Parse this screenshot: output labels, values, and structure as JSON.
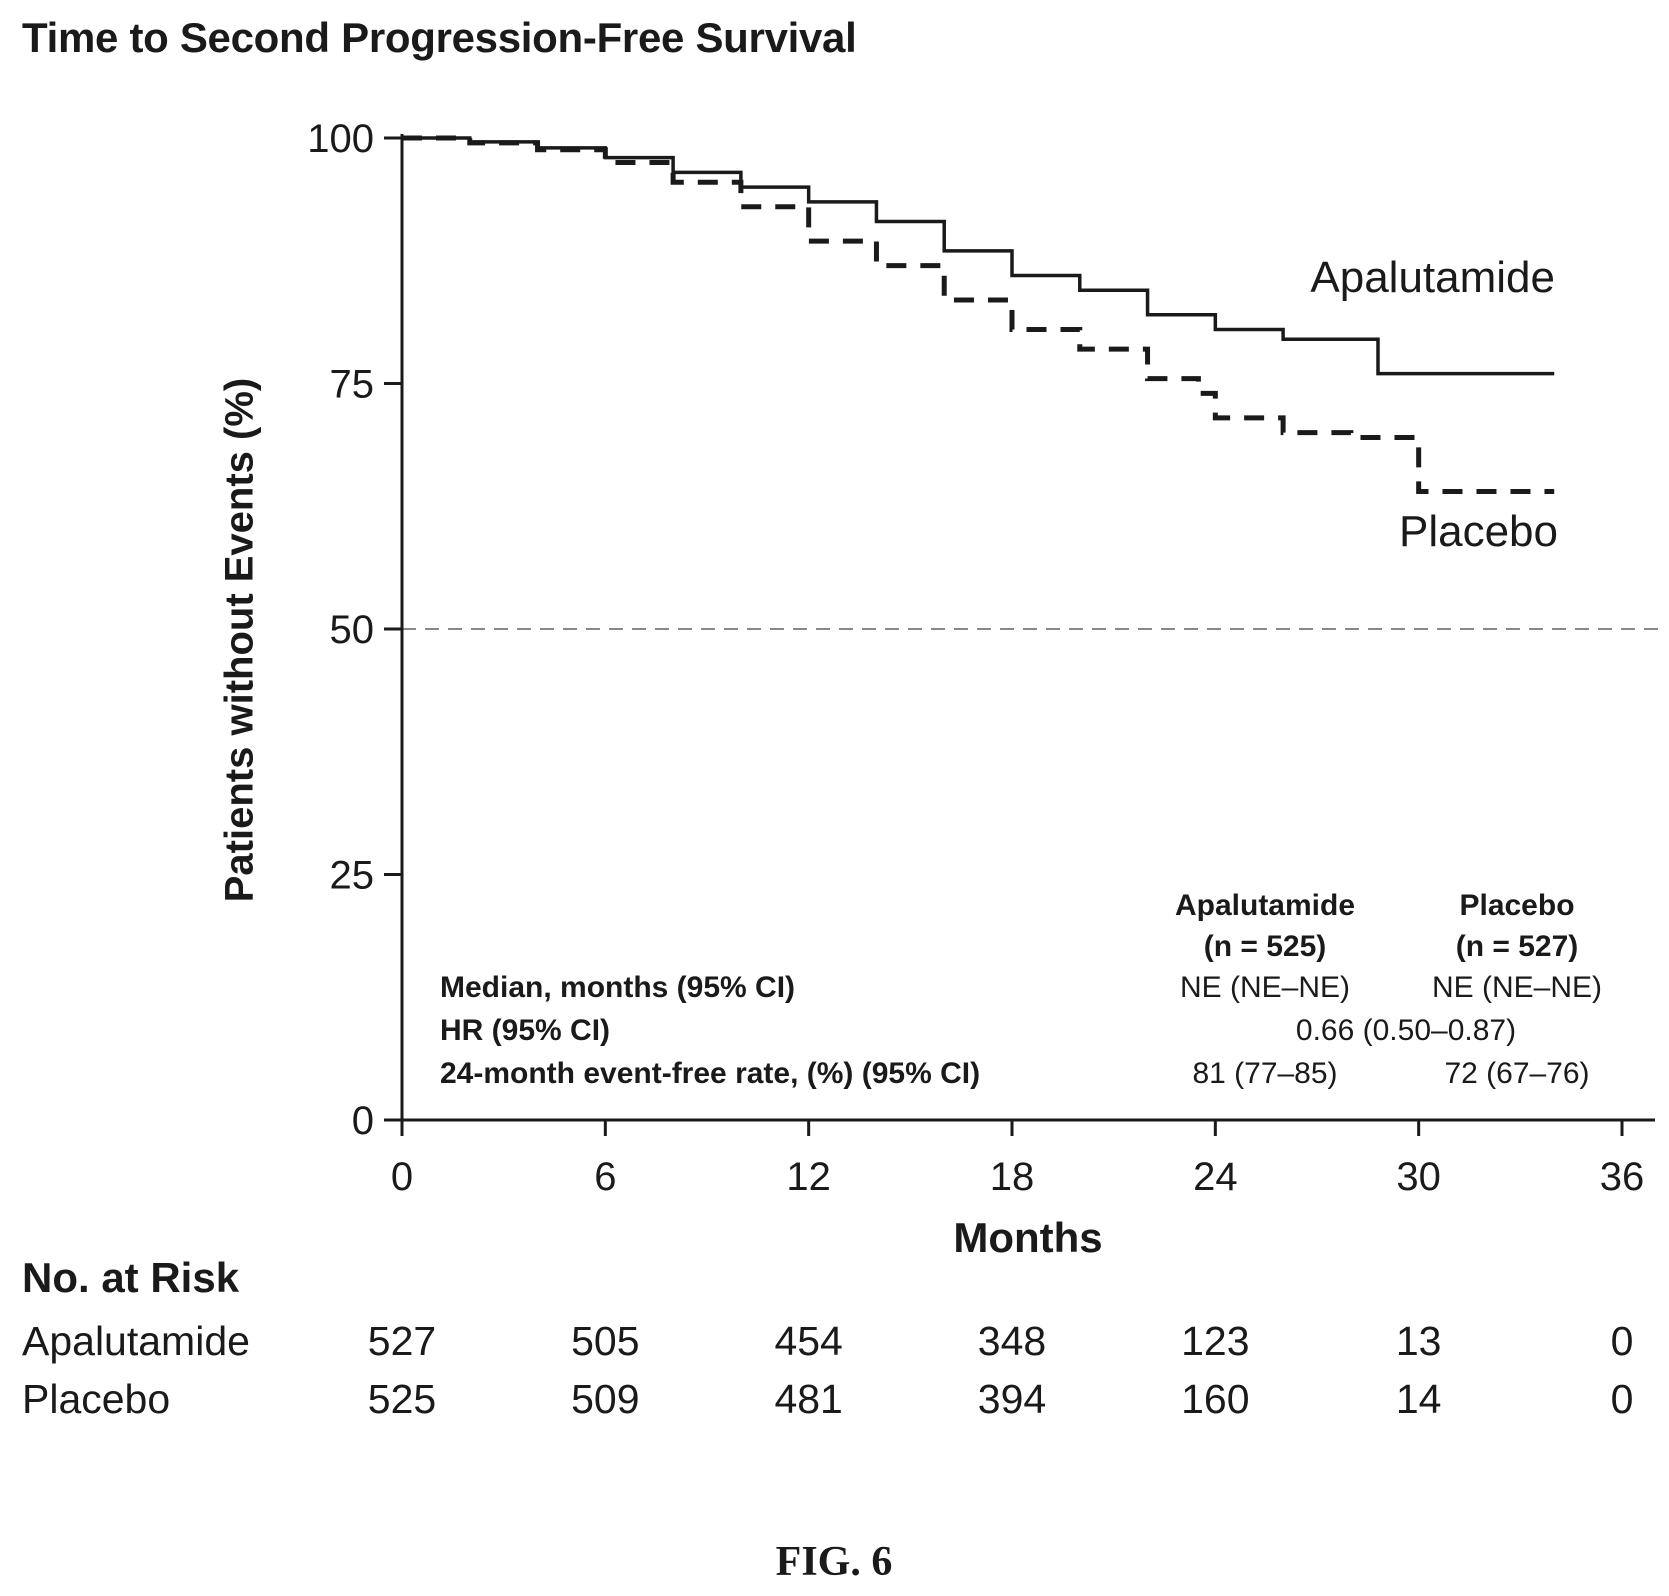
{
  "chart_data": {
    "type": "line",
    "title": "Time to Second Progression-Free Survival",
    "xlabel": "Months",
    "ylabel": "Patients without Events (%)",
    "xlim": [
      0,
      36
    ],
    "ylim": [
      0,
      100
    ],
    "x_ticks": [
      "0",
      "6",
      "12",
      "18",
      "24",
      "30",
      "36"
    ],
    "y_ticks": [
      "0",
      "25",
      "50",
      "75",
      "100"
    ],
    "reference_line": {
      "y": 50,
      "style": "dashed"
    },
    "series": [
      {
        "name": "Apalutamide",
        "style": "solid",
        "points": [
          [
            0,
            100
          ],
          [
            2,
            99.6
          ],
          [
            4,
            99
          ],
          [
            6,
            98
          ],
          [
            8,
            96.5
          ],
          [
            10,
            95
          ],
          [
            12,
            93.5
          ],
          [
            14,
            91.5
          ],
          [
            16,
            88.5
          ],
          [
            18,
            86
          ],
          [
            20,
            84.5
          ],
          [
            22,
            82
          ],
          [
            24,
            80.5
          ],
          [
            26,
            79.5
          ],
          [
            28.8,
            79
          ],
          [
            28.8,
            76
          ],
          [
            34,
            76
          ]
        ]
      },
      {
        "name": "Placebo",
        "style": "dashed",
        "points": [
          [
            0,
            100
          ],
          [
            2,
            99.5
          ],
          [
            4,
            98.8
          ],
          [
            6,
            97.5
          ],
          [
            8,
            95.5
          ],
          [
            10,
            93
          ],
          [
            12,
            89.5
          ],
          [
            14,
            87
          ],
          [
            16,
            83.5
          ],
          [
            18,
            80.5
          ],
          [
            20,
            78.5
          ],
          [
            22,
            75.5
          ],
          [
            23.5,
            74
          ],
          [
            24,
            71.5
          ],
          [
            26,
            70
          ],
          [
            28,
            69.5
          ],
          [
            30,
            69
          ],
          [
            30,
            64
          ],
          [
            34,
            64
          ]
        ]
      }
    ],
    "line_labels": [
      {
        "text": "Apalutamide",
        "series": 0
      },
      {
        "text": "Placebo",
        "series": 1
      }
    ],
    "stats_table": {
      "col_headers": [
        {
          "name": "Apalutamide",
          "n": "(n = 525)"
        },
        {
          "name": "Placebo",
          "n": "(n = 527)"
        }
      ],
      "rows": [
        {
          "label": "Median, months (95% CI)",
          "apalutamide": "NE (NE–NE)",
          "placebo": "NE (NE–NE)"
        },
        {
          "label": "HR (95% CI)",
          "combined": "0.66 (0.50–0.87)"
        },
        {
          "label": "24-month event-free rate, (%) (95% CI)",
          "apalutamide": "81 (77–85)",
          "placebo": "72 (67–76)"
        }
      ]
    },
    "at_risk": {
      "title": "No. at Risk",
      "rows": [
        {
          "label": "Apalutamide",
          "values": [
            "527",
            "505",
            "454",
            "348",
            "123",
            "13",
            "0"
          ]
        },
        {
          "label": "Placebo",
          "values": [
            "525",
            "509",
            "481",
            "394",
            "160",
            "14",
            "0"
          ]
        }
      ]
    }
  },
  "figure_label": "FIG. 6"
}
